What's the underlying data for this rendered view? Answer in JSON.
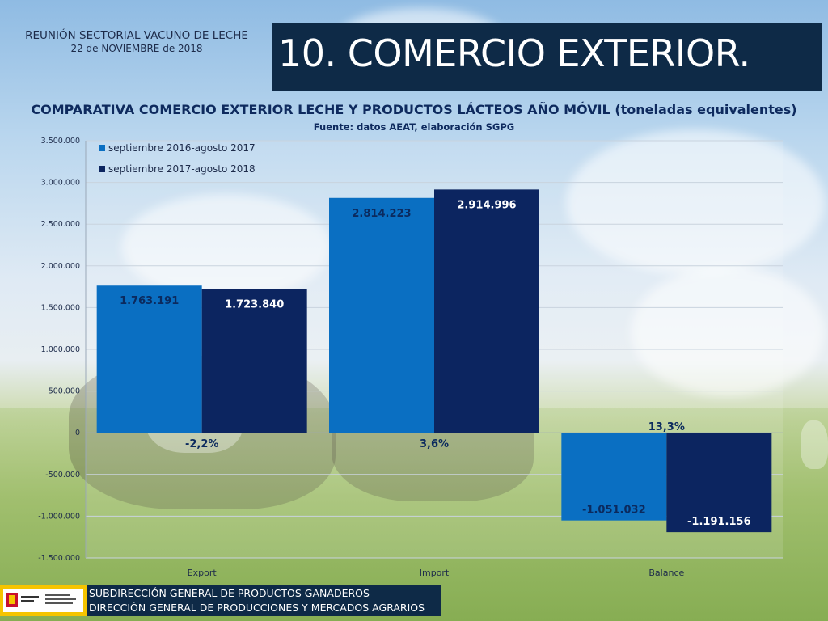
{
  "header": {
    "meeting": "REUNIÓN SECTORIAL VACUNO DE LECHE",
    "date": "22 de NOVIEMBRE de 2018",
    "slide_title": "10. COMERCIO EXTERIOR."
  },
  "footer": {
    "line1": "SUBDIRECCIÓN GENERAL DE PRODUCTOS GANADEROS",
    "line2": "DIRECCIÓN GENERAL DE PRODUCCIONES Y MERCADOS AGRARIOS"
  },
  "colors": {
    "series1": "#0a6fc2",
    "series2": "#0c2560",
    "title_bg": "#0e2a47",
    "logo_yellow": "#f5c400"
  },
  "chart_data": {
    "type": "bar",
    "title": "COMPARATIVA COMERCIO EXTERIOR LECHE Y PRODUCTOS LÁCTEOS AÑO MÓVIL (toneladas equivalentes)",
    "subtitle": "Fuente: datos AEAT, elaboración SGPG",
    "categories": [
      "Export",
      "Import",
      "Balance"
    ],
    "series": [
      {
        "name": "septiembre 2016-agosto 2017",
        "values": [
          1763191,
          2814223,
          -1051032
        ],
        "labels": [
          "1.763.191",
          "2.814.223",
          "-1.051.032"
        ]
      },
      {
        "name": "septiembre 2017-agosto 2018",
        "values": [
          1723840,
          2914996,
          -1191156
        ],
        "labels": [
          "1.723.840",
          "2.914.996",
          "-1.191.156"
        ]
      }
    ],
    "change_labels": [
      "-2,2%",
      "3,6%",
      "13,3%"
    ],
    "ylim": [
      -1500000,
      3500000
    ],
    "yticks": [
      3500000,
      3000000,
      2500000,
      2000000,
      1500000,
      1000000,
      500000,
      0,
      -500000,
      -1000000,
      -1500000
    ],
    "ytick_labels": [
      "3.500.000",
      "3.000.000",
      "2.500.000",
      "2.000.000",
      "1.500.000",
      "1.000.000",
      "500.000",
      "0",
      "-500.000",
      "-1.000.000",
      "-1.500.000"
    ],
    "grid": true,
    "legend_position": "top-left"
  }
}
